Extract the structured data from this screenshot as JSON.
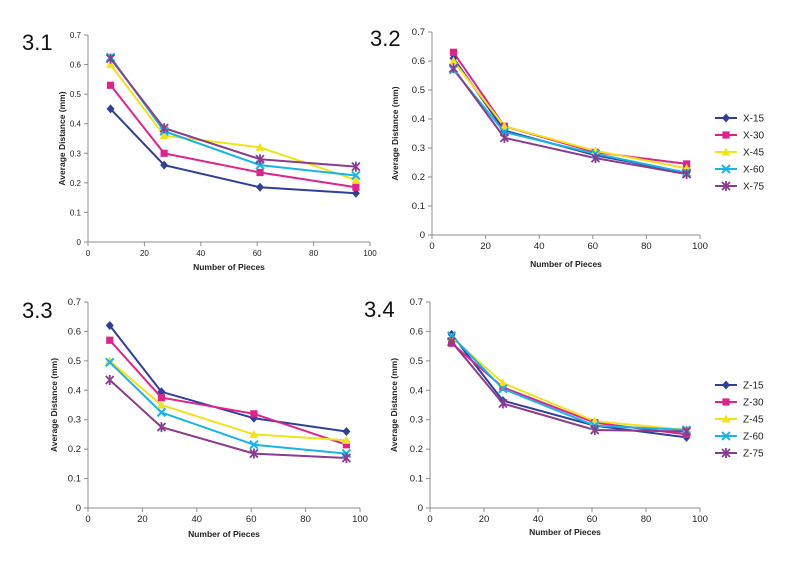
{
  "legends": {
    "x": [
      "X-15",
      "X-30",
      "X-45",
      "X-60",
      "X-75"
    ],
    "z": [
      "Z-15",
      "Z-30",
      "Z-45",
      "Z-60",
      "Z-75"
    ]
  },
  "series_colors": [
    "#2f3f9a",
    "#e0238c",
    "#f2e21a",
    "#18b4e6",
    "#8a3c8e"
  ],
  "series_markers": [
    "diamond",
    "square",
    "triangle",
    "x",
    "star"
  ],
  "chart_data": [
    {
      "panel_label": "3.1",
      "type": "line",
      "xlabel": "Number of Pieces",
      "ylabel": "Average Distance (mm)",
      "xlim": [
        0,
        100
      ],
      "ylim": [
        0,
        0.7
      ],
      "xticks": [
        "0",
        "20",
        "40",
        "60",
        "80",
        "100"
      ],
      "yticks": [
        "0",
        "0.1",
        "0.2",
        "0.3",
        "0.4",
        "0.5",
        "0.6",
        "0.7"
      ],
      "x": [
        8,
        27,
        61,
        95
      ],
      "series": [
        {
          "name": "X-15",
          "values": [
            0.45,
            0.26,
            0.185,
            0.165
          ]
        },
        {
          "name": "X-30",
          "values": [
            0.53,
            0.3,
            0.235,
            0.185
          ]
        },
        {
          "name": "X-45",
          "values": [
            0.6,
            0.36,
            0.32,
            0.21
          ]
        },
        {
          "name": "X-60",
          "values": [
            0.625,
            0.375,
            0.26,
            0.225
          ]
        },
        {
          "name": "X-75",
          "values": [
            0.62,
            0.385,
            0.28,
            0.255
          ]
        }
      ]
    },
    {
      "panel_label": "3.2",
      "type": "line",
      "xlabel": "Number of Pieces",
      "ylabel": "Average Distance (mm)",
      "xlim": [
        0,
        100
      ],
      "ylim": [
        0,
        0.7
      ],
      "xticks": [
        "0",
        "20",
        "40",
        "60",
        "80",
        "100"
      ],
      "yticks": [
        "0",
        "0.1",
        "0.2",
        "0.3",
        "0.4",
        "0.5",
        "0.6",
        "0.7"
      ],
      "x": [
        8,
        27,
        61,
        95
      ],
      "series": [
        {
          "name": "X-15",
          "values": [
            0.61,
            0.36,
            0.275,
            0.215
          ]
        },
        {
          "name": "X-30",
          "values": [
            0.63,
            0.375,
            0.285,
            0.245
          ]
        },
        {
          "name": "X-45",
          "values": [
            0.6,
            0.375,
            0.29,
            0.23
          ]
        },
        {
          "name": "X-60",
          "values": [
            0.57,
            0.355,
            0.28,
            0.215
          ]
        },
        {
          "name": "X-75",
          "values": [
            0.575,
            0.335,
            0.265,
            0.21
          ]
        }
      ]
    },
    {
      "panel_label": "3.3",
      "type": "line",
      "xlabel": "Number of Pieces",
      "ylabel": "Average Distance (mm)",
      "xlim": [
        0,
        100
      ],
      "ylim": [
        0,
        0.7
      ],
      "xticks": [
        "0",
        "20",
        "40",
        "60",
        "80",
        "100"
      ],
      "yticks": [
        "0",
        "0.1",
        "0.2",
        "0.3",
        "0.4",
        "0.5",
        "0.6",
        "0.7"
      ],
      "x": [
        8,
        27,
        61,
        95
      ],
      "series": [
        {
          "name": "Z-15",
          "values": [
            0.62,
            0.395,
            0.305,
            0.26
          ]
        },
        {
          "name": "Z-30",
          "values": [
            0.57,
            0.375,
            0.32,
            0.215
          ]
        },
        {
          "name": "Z-45",
          "values": [
            0.5,
            0.35,
            0.25,
            0.23
          ]
        },
        {
          "name": "Z-60",
          "values": [
            0.495,
            0.325,
            0.215,
            0.185
          ]
        },
        {
          "name": "Z-75",
          "values": [
            0.435,
            0.275,
            0.185,
            0.17
          ]
        }
      ]
    },
    {
      "panel_label": "3.4",
      "type": "line",
      "xlabel": "Number of Pieces",
      "ylabel": "Average Distance (mm)",
      "xlim": [
        0,
        100
      ],
      "ylim": [
        0,
        0.7
      ],
      "xticks": [
        "0",
        "20",
        "40",
        "60",
        "80",
        "100"
      ],
      "yticks": [
        "0",
        "0.1",
        "0.2",
        "0.3",
        "0.4",
        "0.5",
        "0.6",
        "0.7"
      ],
      "x": [
        8,
        27,
        61,
        95
      ],
      "series": [
        {
          "name": "Z-15",
          "values": [
            0.59,
            0.365,
            0.28,
            0.24
          ]
        },
        {
          "name": "Z-30",
          "values": [
            0.56,
            0.41,
            0.29,
            0.25
          ]
        },
        {
          "name": "Z-45",
          "values": [
            0.58,
            0.425,
            0.295,
            0.265
          ]
        },
        {
          "name": "Z-60",
          "values": [
            0.585,
            0.405,
            0.28,
            0.265
          ]
        },
        {
          "name": "Z-75",
          "values": [
            0.565,
            0.355,
            0.265,
            0.26
          ]
        }
      ]
    }
  ]
}
